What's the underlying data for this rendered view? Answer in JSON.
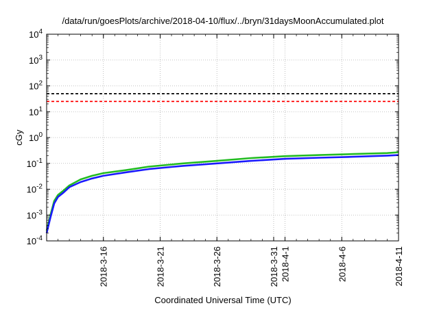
{
  "chart_data": {
    "type": "line",
    "title": "/data/run/goesPlots/archive/2018-04-10/flux/../bryn/31daysMoonAccumulated.plot",
    "xlabel": "Coordinated Universal Time (UTC)",
    "ylabel": "cGy",
    "y_scale": "log",
    "ylim": [
      0.0001,
      10000
    ],
    "xlim": [
      "2018-03-11",
      "2018-04-11"
    ],
    "grid": true,
    "y_ticks": [
      {
        "value": 0.0001,
        "base": "10",
        "exp": "-4"
      },
      {
        "value": 0.001,
        "base": "10",
        "exp": "-3"
      },
      {
        "value": 0.01,
        "base": "10",
        "exp": "-2"
      },
      {
        "value": 0.1,
        "base": "10",
        "exp": "-1"
      },
      {
        "value": 1,
        "base": "10",
        "exp": "0"
      },
      {
        "value": 10,
        "base": "10",
        "exp": "1"
      },
      {
        "value": 100,
        "base": "10",
        "exp": "2"
      },
      {
        "value": 1000,
        "base": "10",
        "exp": "3"
      },
      {
        "value": 10000,
        "base": "10",
        "exp": "4"
      }
    ],
    "x_ticks": [
      {
        "value": "2018-03-16",
        "label": "2018-3-16"
      },
      {
        "value": "2018-03-21",
        "label": "2018-3-21"
      },
      {
        "value": "2018-03-26",
        "label": "2018-3-26"
      },
      {
        "value": "2018-03-31",
        "label": "2018-3-31"
      },
      {
        "value": "2018-04-01",
        "label": "2018-4-1"
      },
      {
        "value": "2018-04-06",
        "label": "2018-4-6"
      },
      {
        "value": "2018-04-11",
        "label": "2018-4-11"
      }
    ],
    "reference_lines": [
      {
        "y": 50,
        "color": "#000000",
        "style": "dashed"
      },
      {
        "y": 25,
        "color": "#ff0000",
        "style": "dashed"
      }
    ],
    "series": [
      {
        "color": "#22bb22",
        "x": [
          "2018-03-11",
          "2018-03-11",
          "2018-03-11",
          "2018-03-12",
          "2018-03-12",
          "2018-03-13",
          "2018-03-14",
          "2018-03-15",
          "2018-03-16",
          "2018-03-18",
          "2018-03-20",
          "2018-03-23",
          "2018-03-26",
          "2018-03-29",
          "2018-04-01",
          "2018-04-04",
          "2018-04-07",
          "2018-04-10",
          "2018-04-11"
        ],
        "values": [
          0.00025,
          0.001,
          0.0035,
          0.006,
          0.009,
          0.014,
          0.024,
          0.033,
          0.042,
          0.055,
          0.075,
          0.1,
          0.125,
          0.16,
          0.19,
          0.21,
          0.23,
          0.25,
          0.27
        ]
      },
      {
        "color": "#1a1aff",
        "x": [
          "2018-03-11",
          "2018-03-11",
          "2018-03-11",
          "2018-03-12",
          "2018-03-12",
          "2018-03-13",
          "2018-03-14",
          "2018-03-15",
          "2018-03-16",
          "2018-03-18",
          "2018-03-20",
          "2018-03-23",
          "2018-03-26",
          "2018-03-29",
          "2018-04-01",
          "2018-04-04",
          "2018-04-07",
          "2018-04-10",
          "2018-04-11"
        ],
        "values": [
          0.0002,
          0.0008,
          0.0028,
          0.005,
          0.0075,
          0.012,
          0.019,
          0.026,
          0.033,
          0.045,
          0.06,
          0.08,
          0.1,
          0.125,
          0.15,
          0.165,
          0.18,
          0.2,
          0.21
        ]
      }
    ]
  }
}
